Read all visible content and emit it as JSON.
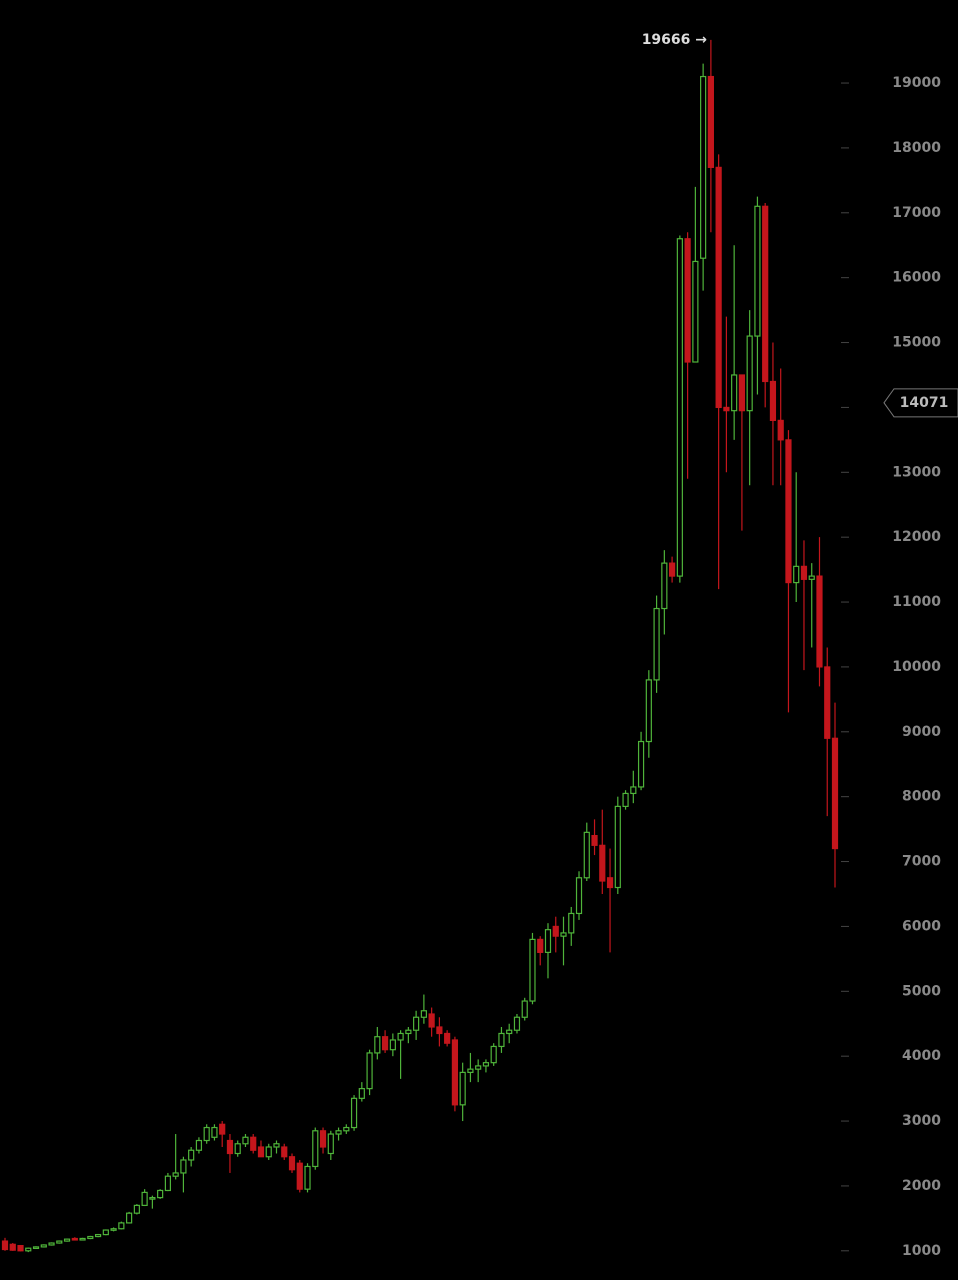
{
  "chart_data": {
    "type": "candlestick",
    "ylim": [
      550,
      20280
    ],
    "yticks": [
      1000,
      2000,
      3000,
      4000,
      5000,
      6000,
      7000,
      8000,
      9000,
      10000,
      11000,
      12000,
      13000,
      14000,
      15000,
      16000,
      17000,
      18000,
      19000
    ],
    "up_color": "#4fb43a",
    "down_color": "#c4161c",
    "open": [
      1150,
      1100,
      1080,
      1000,
      1040,
      1060,
      1090,
      1120,
      1150,
      1190,
      1170,
      1190,
      1220,
      1250,
      1320,
      1340,
      1430,
      1580,
      1700,
      1800,
      1820,
      1930,
      2150,
      2200,
      2400,
      2550,
      2700,
      2750,
      2950,
      2700,
      2500,
      2650,
      2750,
      2600,
      2450,
      2600,
      2600,
      2450,
      2350,
      1950,
      2300,
      2850,
      2500,
      2800,
      2850,
      2900,
      3350,
      3500,
      4050,
      4300,
      4100,
      4250,
      4350,
      4400,
      4600,
      4650,
      4450,
      4350,
      4250,
      3250,
      3750,
      3800,
      3850,
      3900,
      4150,
      4350,
      4400,
      4600,
      4850,
      5800,
      5600,
      6000,
      5850,
      5900,
      6200,
      6750,
      7400,
      7250,
      6750,
      6600,
      7850,
      8050,
      8150,
      8850,
      9800,
      10900,
      11600,
      11400,
      16600,
      14700,
      16300,
      19100,
      17700,
      14000,
      13950,
      14500,
      13950,
      15100,
      17100,
      14400,
      13800,
      13500,
      11300,
      11550,
      11350,
      11400,
      10000,
      8900
    ],
    "high": [
      1200,
      1120,
      1090,
      1050,
      1070,
      1100,
      1130,
      1160,
      1190,
      1210,
      1200,
      1230,
      1260,
      1330,
      1360,
      1450,
      1600,
      1720,
      1950,
      1850,
      1950,
      2200,
      2800,
      2450,
      2600,
      2750,
      2950,
      2950,
      3000,
      2800,
      2700,
      2800,
      2800,
      2700,
      2650,
      2700,
      2650,
      2500,
      2400,
      2350,
      2900,
      2900,
      2850,
      2900,
      2950,
      3400,
      3600,
      4100,
      4450,
      4400,
      4350,
      4400,
      4450,
      4700,
      4950,
      4750,
      4600,
      4400,
      4300,
      3900,
      4050,
      3950,
      3950,
      4200,
      4450,
      4500,
      4650,
      4900,
      5900,
      5850,
      6050,
      6150,
      6150,
      6300,
      6850,
      7600,
      7650,
      7800,
      7200,
      8000,
      8100,
      8400,
      9000,
      9950,
      11100,
      11800,
      11700,
      16650,
      16700,
      17400,
      19300,
      19666,
      17900,
      15400,
      16500,
      14500,
      15500,
      17250,
      17150,
      15000,
      14600,
      13650,
      13000,
      11950,
      11600,
      12000,
      10300,
      9450
    ],
    "low": [
      1000,
      1000,
      990,
      980,
      1030,
      1050,
      1080,
      1110,
      1140,
      1160,
      1160,
      1180,
      1210,
      1240,
      1300,
      1330,
      1420,
      1560,
      1690,
      1650,
      1800,
      1920,
      2100,
      1900,
      2300,
      2500,
      2650,
      2700,
      2600,
      2200,
      2450,
      2600,
      2500,
      2450,
      2400,
      2500,
      2400,
      2200,
      1900,
      1900,
      2250,
      2500,
      2400,
      2700,
      2800,
      2850,
      3300,
      3400,
      3950,
      4050,
      4000,
      3650,
      4200,
      4250,
      4500,
      4300,
      4150,
      4150,
      3150,
      3000,
      3600,
      3600,
      3750,
      3850,
      4050,
      4200,
      4350,
      4550,
      4800,
      5400,
      5200,
      5600,
      5400,
      5700,
      6100,
      6700,
      7100,
      6500,
      5600,
      6500,
      7800,
      7900,
      8100,
      8600,
      9600,
      10500,
      11300,
      11300,
      12900,
      14700,
      15800,
      16700,
      11200,
      13000,
      13500,
      12100,
      12800,
      14200,
      14000,
      12800,
      12800,
      9300,
      11000,
      9950,
      10300,
      9700,
      7700,
      6600
    ],
    "close": [
      1020,
      1010,
      1000,
      1040,
      1060,
      1090,
      1120,
      1150,
      1180,
      1170,
      1190,
      1220,
      1250,
      1320,
      1340,
      1430,
      1580,
      1700,
      1900,
      1820,
      1930,
      2150,
      2200,
      2400,
      2550,
      2700,
      2900,
      2900,
      2800,
      2500,
      2650,
      2750,
      2550,
      2450,
      2600,
      2650,
      2450,
      2250,
      1950,
      2300,
      2850,
      2600,
      2800,
      2850,
      2900,
      3350,
      3500,
      4050,
      4300,
      4100,
      4250,
      4350,
      4400,
      4600,
      4700,
      4450,
      4350,
      4200,
      3250,
      3750,
      3800,
      3850,
      3900,
      4150,
      4350,
      4400,
      4600,
      4850,
      5800,
      5600,
      5950,
      5850,
      5900,
      6200,
      6750,
      7450,
      7250,
      6700,
      6600,
      7850,
      8050,
      8150,
      8850,
      9800,
      10900,
      11600,
      11400,
      16600,
      14700,
      16250,
      19100,
      17700,
      14000,
      13950,
      14500,
      13950,
      15100,
      17100,
      14400,
      13800,
      13500,
      11300,
      11550,
      11350,
      11400,
      10000,
      8900,
      7200
    ],
    "annotations": [
      {
        "label": "19666 →",
        "value": 19666
      },
      {
        "label": "14071",
        "value": 14071
      }
    ]
  }
}
